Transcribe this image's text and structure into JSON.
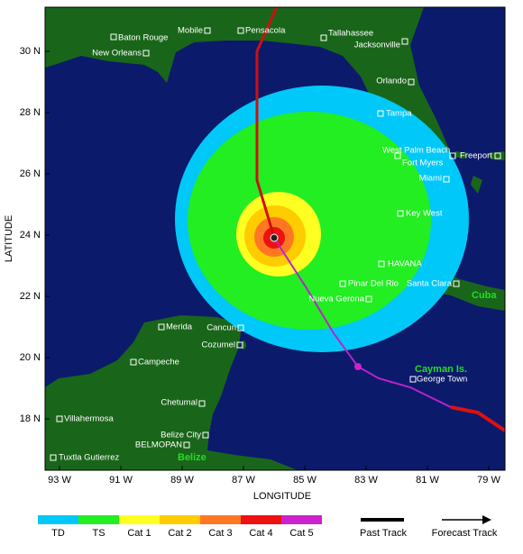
{
  "map": {
    "axes": {
      "x_label": "LONGITUDE",
      "y_label": "LATITUDE",
      "x_ticks": [
        "93 W",
        "91 W",
        "89 W",
        "87 W",
        "85 W",
        "83 W",
        "81 W",
        "79 W"
      ],
      "y_ticks": [
        "30 N",
        "28 N",
        "26 N",
        "24 N",
        "22 N",
        "20 N",
        "18 N"
      ]
    },
    "places": [
      "Baton Rouge",
      "Mobile",
      "Pensacola",
      "Tallahassee",
      "Jacksonville",
      "New Orleans",
      "Orlando",
      "Tampa",
      "West Palm Beach",
      "Fort Myers",
      "Freeport",
      "Miami",
      "Key West",
      "HAVANA",
      "Pinar Del Rio",
      "Santa Clara",
      "Nueva Gerona",
      "Merida",
      "Cancun",
      "Cozumel",
      "Campeche",
      "George Town",
      "Chetumal",
      "Villahermosa",
      "Belize City",
      "BELMOPAN",
      "Tuxtla Gutierrez"
    ],
    "region_labels": [
      "Cuba",
      "Cayman Is.",
      "Belize"
    ]
  },
  "legend": {
    "intensity": [
      "TD",
      "TS",
      "Cat 1",
      "Cat 2",
      "Cat 3",
      "Cat 4",
      "Cat 5"
    ],
    "tracks": [
      "Past Track",
      "Forecast Track"
    ]
  }
}
